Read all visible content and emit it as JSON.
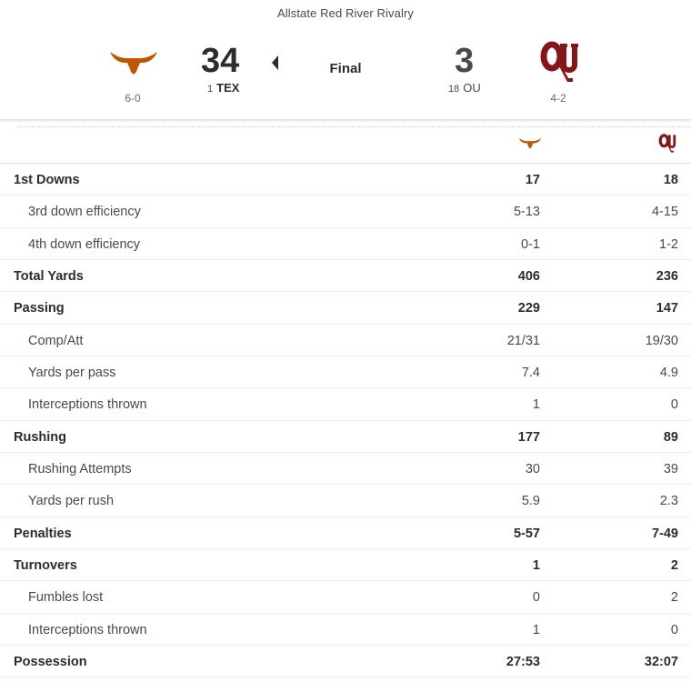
{
  "header": {
    "game_title": "Allstate Red River Rivalry",
    "status": "Final",
    "home": {
      "abbr": "TEX",
      "rank": "1",
      "score": "34",
      "record": "6-0",
      "color": "#bf5700",
      "winner": true
    },
    "away": {
      "abbr": "OU",
      "rank": "18",
      "score": "3",
      "record": "4-2",
      "color": "#841617"
    }
  },
  "icons": {
    "home_logo": "longhorn-icon",
    "away_logo": "ou-monogram-icon",
    "winner_indicator": "winner-arrow-icon"
  },
  "stats": [
    {
      "label": "1st Downs",
      "home": "17",
      "away": "18",
      "type": "main"
    },
    {
      "label": "3rd down efficiency",
      "home": "5-13",
      "away": "4-15",
      "type": "sub"
    },
    {
      "label": "4th down efficiency",
      "home": "0-1",
      "away": "1-2",
      "type": "sub"
    },
    {
      "label": "Total Yards",
      "home": "406",
      "away": "236",
      "type": "main"
    },
    {
      "label": "Passing",
      "home": "229",
      "away": "147",
      "type": "main"
    },
    {
      "label": "Comp/Att",
      "home": "21/31",
      "away": "19/30",
      "type": "sub"
    },
    {
      "label": "Yards per pass",
      "home": "7.4",
      "away": "4.9",
      "type": "sub"
    },
    {
      "label": "Interceptions thrown",
      "home": "1",
      "away": "0",
      "type": "sub"
    },
    {
      "label": "Rushing",
      "home": "177",
      "away": "89",
      "type": "main"
    },
    {
      "label": "Rushing Attempts",
      "home": "30",
      "away": "39",
      "type": "sub"
    },
    {
      "label": "Yards per rush",
      "home": "5.9",
      "away": "2.3",
      "type": "sub"
    },
    {
      "label": "Penalties",
      "home": "5-57",
      "away": "7-49",
      "type": "main"
    },
    {
      "label": "Turnovers",
      "home": "1",
      "away": "2",
      "type": "main"
    },
    {
      "label": "Fumbles lost",
      "home": "0",
      "away": "2",
      "type": "sub"
    },
    {
      "label": "Interceptions thrown",
      "home": "1",
      "away": "0",
      "type": "sub"
    },
    {
      "label": "Possession",
      "home": "27:53",
      "away": "32:07",
      "type": "main"
    }
  ]
}
